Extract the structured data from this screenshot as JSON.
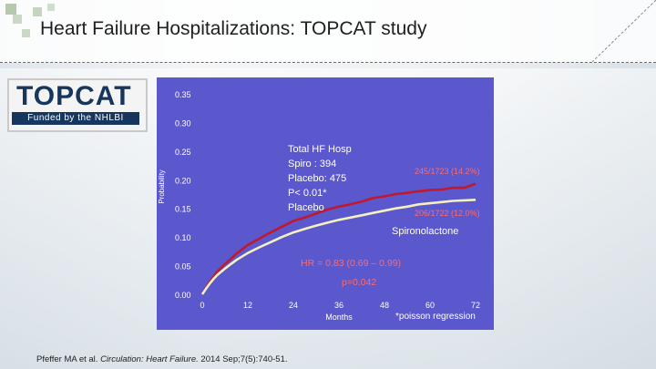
{
  "slide": {
    "title": "Heart Failure Hospitalizations: TOPCAT study",
    "logo": {
      "word": "TOPCAT",
      "funded": "Funded by the NHLBI"
    },
    "citation": {
      "authors": "Pfeffer MA et al. ",
      "journal": "Circulation: Heart Failure.",
      "details": " 2014 Sep;7(5):740-51."
    }
  },
  "colors": {
    "chart_bg": "#5b57cc",
    "placebo": "#c0192c",
    "spironolactone": "#f4f0c0",
    "annotation": "#ff6b6b",
    "white_text": "#ffffff"
  },
  "chart_data": {
    "type": "line",
    "title": "",
    "xlabel": "Months",
    "ylabel": "Probability",
    "xlim": [
      0,
      72
    ],
    "ylim": [
      0,
      0.35
    ],
    "x_ticks": [
      "0",
      "12",
      "24",
      "36",
      "48",
      "60",
      "72"
    ],
    "y_ticks": [
      "0.00",
      "0.05",
      "0.10",
      "0.15",
      "0.20",
      "0.25",
      "0.30",
      "0.35"
    ],
    "series": [
      {
        "name": "Placebo",
        "x": [
          0,
          1,
          2,
          3,
          4,
          6,
          9,
          12,
          15,
          18,
          21,
          24,
          27,
          30,
          33,
          36,
          39,
          42,
          45,
          48,
          51,
          54,
          57,
          60,
          63,
          66,
          69,
          72
        ],
        "y": [
          0,
          0.012,
          0.022,
          0.031,
          0.04,
          0.053,
          0.071,
          0.086,
          0.097,
          0.108,
          0.118,
          0.128,
          0.134,
          0.141,
          0.148,
          0.153,
          0.157,
          0.162,
          0.168,
          0.171,
          0.175,
          0.177,
          0.18,
          0.182,
          0.183,
          0.186,
          0.186,
          0.193
        ]
      },
      {
        "name": "Spironolactone",
        "x": [
          0,
          1,
          2,
          3,
          4,
          6,
          9,
          12,
          15,
          18,
          21,
          24,
          27,
          30,
          33,
          36,
          39,
          42,
          45,
          48,
          51,
          54,
          57,
          60,
          63,
          66,
          69,
          72
        ],
        "y": [
          0,
          0.01,
          0.019,
          0.027,
          0.034,
          0.045,
          0.06,
          0.072,
          0.082,
          0.091,
          0.1,
          0.108,
          0.114,
          0.12,
          0.125,
          0.13,
          0.134,
          0.138,
          0.142,
          0.146,
          0.15,
          0.153,
          0.157,
          0.159,
          0.161,
          0.163,
          0.164,
          0.165
        ]
      }
    ],
    "annotations": {
      "summary_lines": [
        "Total HF Hosp",
        "Spiro    : 394",
        "Placebo: 475",
        "P< 0.01*",
        "Placebo"
      ],
      "placebo_rate": "245/1723 (14.2%)",
      "spiro_rate": "206/1722 (12.0%)",
      "spiro_label": "Spironolactone",
      "hr": "HR = 0.83 (0.69 – 0.99)",
      "p": "p=0.042",
      "footnote": "*poisson regression"
    }
  }
}
